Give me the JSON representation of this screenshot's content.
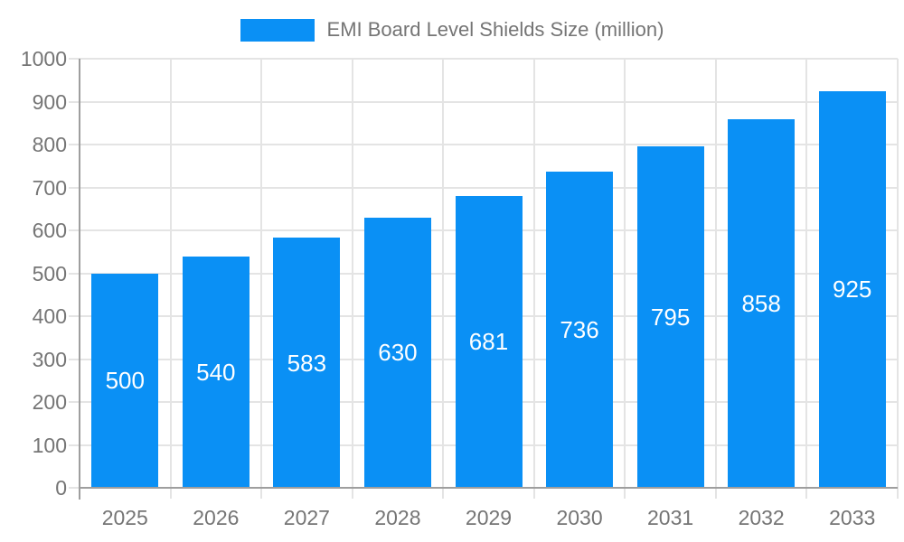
{
  "chart_data": {
    "type": "bar",
    "title": "EMI Board Level Shields Size (million)",
    "series_name": "EMI Board Level Shields Size (million)",
    "legend_position": "top-center",
    "categories": [
      "2025",
      "2026",
      "2027",
      "2028",
      "2029",
      "2030",
      "2031",
      "2032",
      "2033"
    ],
    "values": [
      500,
      540,
      583,
      630,
      681,
      736,
      795,
      858,
      925
    ],
    "xlabel": "",
    "ylabel": "",
    "ylim": [
      0,
      1000
    ],
    "ytick_step": 100,
    "ytick_labels": [
      "0",
      "100",
      "200",
      "300",
      "400",
      "500",
      "600",
      "700",
      "800",
      "900",
      "1000"
    ],
    "grid": "both",
    "bar_value_labels": "inside-center",
    "colors": {
      "bar": "#0A90F5",
      "bar_label_text": "#FFFFFF",
      "tick_text": "#757575",
      "legend_text": "#757575",
      "grid_line": "#E4E4E4",
      "axis_line": "#9E9E9E",
      "background": "#FFFFFF"
    }
  }
}
